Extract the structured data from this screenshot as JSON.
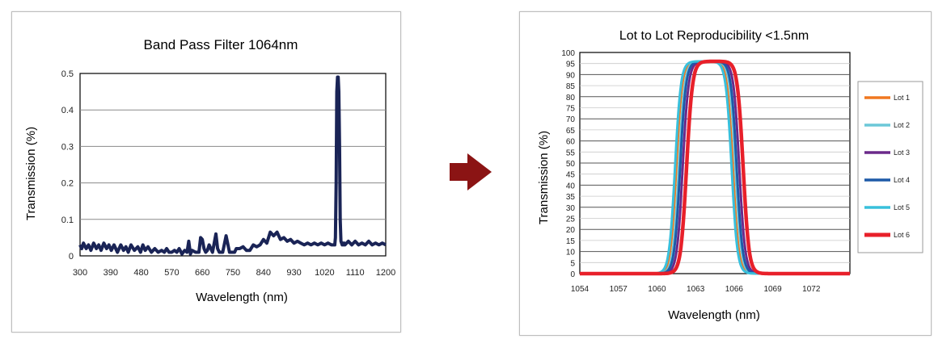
{
  "chart_data": [
    {
      "type": "line",
      "title": "Band Pass Filter 1064nm",
      "xlabel": "Wavelength  (nm)",
      "ylabel": "Transmission (%)",
      "xlim": [
        300,
        1200
      ],
      "ylim": [
        0,
        0.5
      ],
      "x_ticks": [
        "300",
        "390",
        "480",
        "570",
        "660",
        "750",
        "840",
        "930",
        "1020",
        "1110",
        "1200"
      ],
      "y_ticks": [
        "0",
        "0.1",
        "0.2",
        "0.3",
        "0.4",
        "0.5"
      ],
      "grid": true,
      "color": "#1a2456",
      "series": [
        {
          "x": [
            300,
            305,
            310,
            318,
            325,
            332,
            340,
            348,
            355,
            362,
            370,
            378,
            385,
            392,
            400,
            410,
            420,
            428,
            435,
            442,
            450,
            460,
            470,
            478,
            485,
            492,
            500,
            510,
            520,
            530,
            540,
            548,
            555,
            562,
            570,
            578,
            585,
            592,
            600,
            608,
            615,
            620,
            625,
            630,
            640,
            650,
            655,
            660,
            665,
            670,
            675,
            680,
            690,
            700,
            705,
            710,
            715,
            720,
            730,
            740,
            745,
            750,
            755,
            760,
            770,
            780,
            790,
            800,
            810,
            820,
            830,
            840,
            850,
            860,
            870,
            880,
            890,
            900,
            910,
            920,
            930,
            940,
            950,
            960,
            970,
            980,
            990,
            1000,
            1010,
            1020,
            1030,
            1040,
            1050,
            1052,
            1054,
            1056,
            1058,
            1060,
            1062,
            1064,
            1066,
            1068,
            1070,
            1072,
            1074,
            1076,
            1078,
            1080,
            1090,
            1100,
            1110,
            1120,
            1130,
            1140,
            1150,
            1160,
            1170,
            1180,
            1190,
            1200
          ],
          "y": [
            0.03,
            0.02,
            0.035,
            0.02,
            0.03,
            0.015,
            0.035,
            0.02,
            0.03,
            0.015,
            0.035,
            0.02,
            0.03,
            0.015,
            0.03,
            0.01,
            0.03,
            0.015,
            0.025,
            0.01,
            0.03,
            0.015,
            0.025,
            0.01,
            0.03,
            0.015,
            0.025,
            0.01,
            0.02,
            0.01,
            0.015,
            0.01,
            0.02,
            0.01,
            0.01,
            0.015,
            0.01,
            0.02,
            0.005,
            0.015,
            0.01,
            0.04,
            0.005,
            0.015,
            0.01,
            0.01,
            0.05,
            0.045,
            0.02,
            0.01,
            0.015,
            0.03,
            0.01,
            0.06,
            0.02,
            0.01,
            0.01,
            0.01,
            0.055,
            0.01,
            0.01,
            0.01,
            0.01,
            0.02,
            0.02,
            0.025,
            0.015,
            0.015,
            0.03,
            0.025,
            0.03,
            0.045,
            0.035,
            0.065,
            0.055,
            0.065,
            0.045,
            0.05,
            0.04,
            0.045,
            0.035,
            0.04,
            0.035,
            0.03,
            0.035,
            0.03,
            0.035,
            0.03,
            0.035,
            0.03,
            0.035,
            0.03,
            0.03,
            0.05,
            0.2,
            0.45,
            0.49,
            0.49,
            0.45,
            0.3,
            0.1,
            0.04,
            0.035,
            0.03,
            0.035,
            0.03,
            0.035,
            0.03,
            0.04,
            0.03,
            0.04,
            0.03,
            0.035,
            0.03,
            0.04,
            0.03,
            0.035,
            0.03,
            0.035,
            0.03
          ]
        }
      ]
    },
    {
      "type": "line",
      "title": "Lot to Lot Reproducibility <1.5nm",
      "xlabel": "Wavelength (nm)",
      "ylabel": "Transmission (%)",
      "xlim": [
        1054,
        1075
      ],
      "ylim": [
        0,
        100
      ],
      "x_ticks": [
        "1054",
        "1057",
        "1060",
        "1063",
        "1066",
        "1069",
        "1072"
      ],
      "y_ticks": [
        "0",
        "5",
        "10",
        "15",
        "20",
        "25",
        "30",
        "35",
        "40",
        "45",
        "50",
        "55",
        "60",
        "65",
        "70",
        "75",
        "80",
        "85",
        "90",
        "95",
        "100"
      ],
      "grid": true,
      "legend": "right",
      "series": [
        {
          "name": "Lot 1",
          "color": "#f07820",
          "center": 1063.7,
          "width": 1.1
        },
        {
          "name": "Lot 2",
          "color": "#6cc8d8",
          "center": 1063.9,
          "width": 1.1
        },
        {
          "name": "Lot 3",
          "color": "#6b2a8a",
          "center": 1064.2,
          "width": 1.1
        },
        {
          "name": "Lot 4",
          "color": "#1e5aa8",
          "center": 1064.0,
          "width": 1.1
        },
        {
          "name": "Lot 5",
          "color": "#38c0dc",
          "center": 1063.6,
          "width": 1.1
        },
        {
          "name": "Lot 6",
          "color": "#e8202a",
          "center": 1064.5,
          "width": 1.1
        }
      ],
      "peak": 96,
      "plateau_half_width": 2.2
    }
  ],
  "arrow": {
    "color": "#8b1414",
    "icon": "right-arrow-icon"
  }
}
